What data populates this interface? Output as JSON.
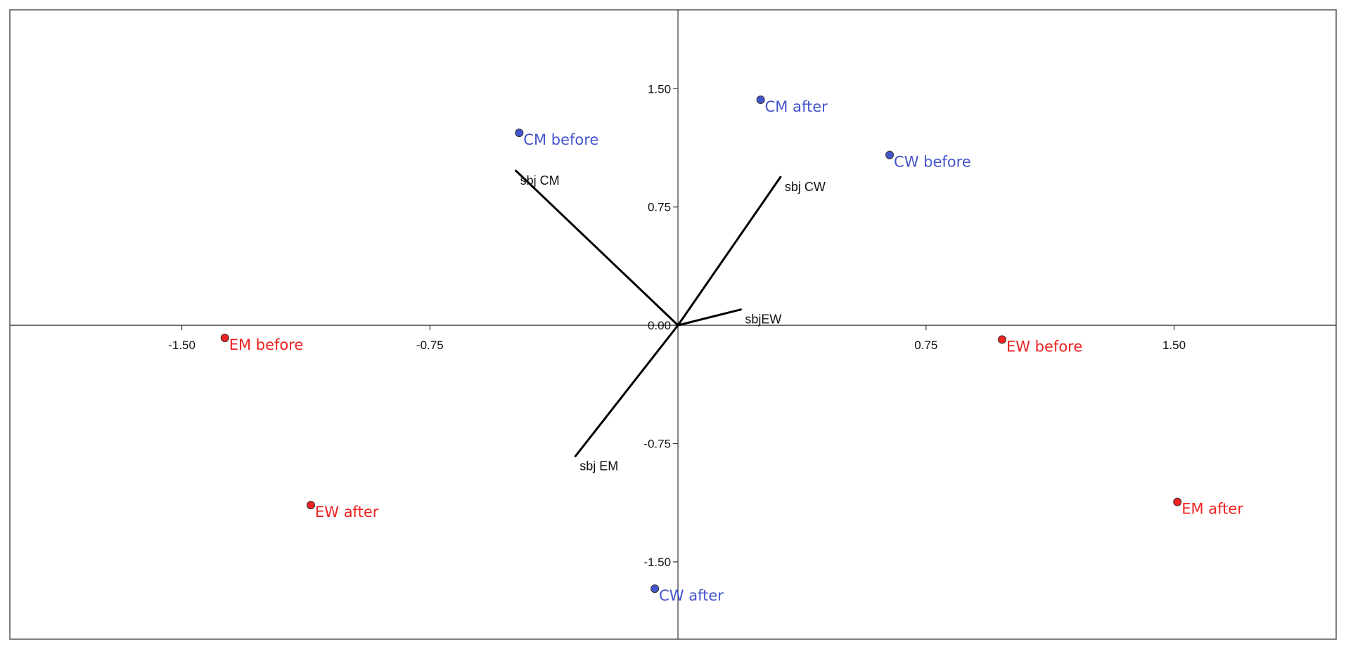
{
  "chart_data": {
    "type": "scatter",
    "xlim": [
      -2.02,
      1.99
    ],
    "ylim": [
      -1.99,
      2.0
    ],
    "grid": false,
    "x_ticks": [
      {
        "value": -1.5,
        "label": "-1.50"
      },
      {
        "value": -0.75,
        "label": "-0.75"
      },
      {
        "value": 0.75,
        "label": "0.75"
      },
      {
        "value": 1.5,
        "label": "1.50"
      }
    ],
    "y_ticks": [
      {
        "value": 1.5,
        "label": "1.50"
      },
      {
        "value": 0.75,
        "label": "0.75"
      },
      {
        "value": 0.0,
        "label": "0.00"
      },
      {
        "value": -0.75,
        "label": "-0.75"
      },
      {
        "value": -1.5,
        "label": "-1.50"
      }
    ],
    "points": [
      {
        "label": "CM before",
        "x": -0.48,
        "y": 1.22,
        "color": "#4455cc"
      },
      {
        "label": "CM after",
        "x": 0.25,
        "y": 1.43,
        "color": "#4455cc"
      },
      {
        "label": "CW before",
        "x": 0.64,
        "y": 1.08,
        "color": "#4455cc"
      },
      {
        "label": "CW after",
        "x": -0.07,
        "y": -1.67,
        "color": "#4455cc"
      },
      {
        "label": "EM before",
        "x": -1.37,
        "y": -0.08,
        "color": "#ee2222"
      },
      {
        "label": "EW before",
        "x": 0.98,
        "y": -0.09,
        "color": "#ee2222"
      },
      {
        "label": "EW after",
        "x": -1.11,
        "y": -1.14,
        "color": "#ee2222"
      },
      {
        "label": "EM after",
        "x": 1.51,
        "y": -1.12,
        "color": "#ee2222"
      }
    ],
    "vectors": [
      {
        "label": "sbj CM",
        "x": -0.49,
        "y": 0.98
      },
      {
        "label": "sbj CW",
        "x": 0.31,
        "y": 0.94
      },
      {
        "label": "sbjEW",
        "x": 0.19,
        "y": 0.1
      },
      {
        "label": "sbj EM",
        "x": -0.31,
        "y": -0.83
      }
    ]
  }
}
